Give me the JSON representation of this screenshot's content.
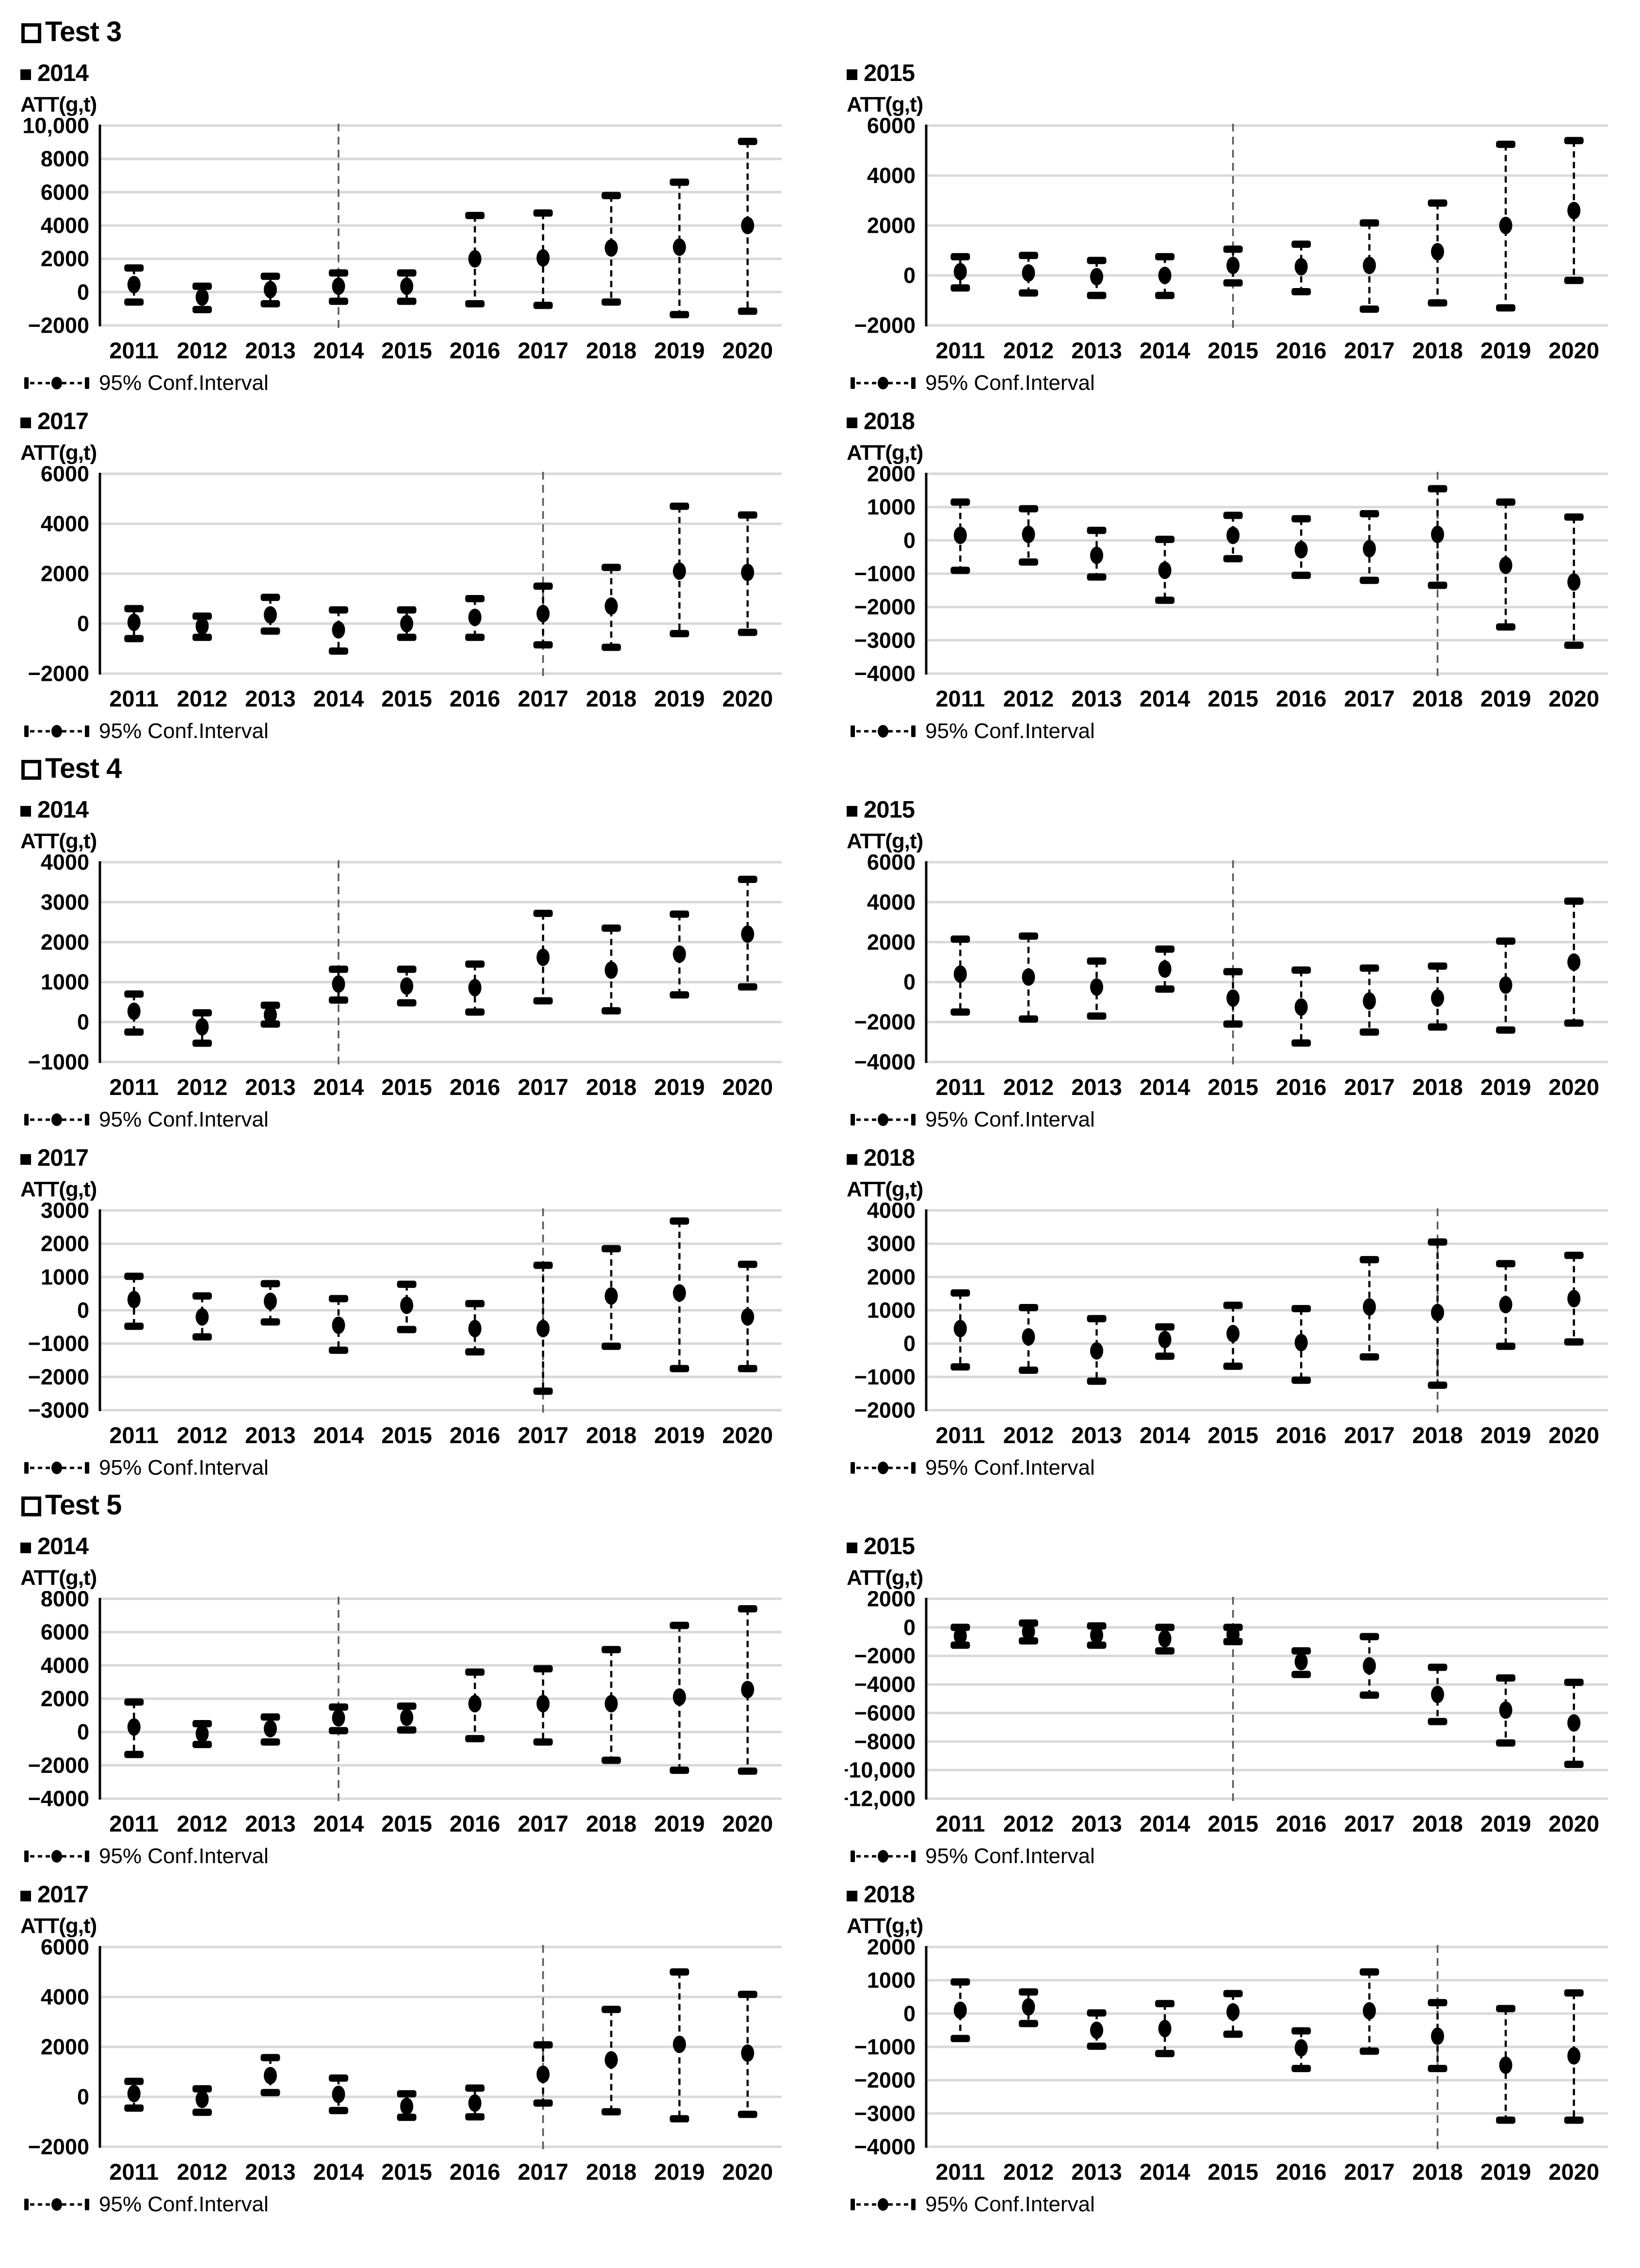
{
  "ui": {
    "legend_label": "95% Conf.Interval",
    "y_axis_title": "ATT(g,t)"
  },
  "colors": {
    "marker": "#000000",
    "gridline": "#d8d8d8",
    "vline": "#595959",
    "text": "#000000"
  },
  "sections": [
    {
      "title": "Test 3",
      "chart_indexes": [
        0,
        1,
        2,
        3
      ]
    },
    {
      "title": "Test 4",
      "chart_indexes": [
        4,
        5,
        6,
        7
      ]
    },
    {
      "title": "Test 5",
      "chart_indexes": [
        8,
        9,
        10,
        11
      ]
    }
  ],
  "chart_data": [
    {
      "type": "scatter",
      "error_bars": true,
      "section": "Test 3",
      "group": "2014",
      "ylabel": "ATT(g,t)",
      "xlabel": "",
      "legend_label": "95% Conf.Interval",
      "legend_position": "bottom-left",
      "grid": true,
      "vline_x": 2014,
      "x": [
        2011,
        2012,
        2013,
        2014,
        2015,
        2016,
        2017,
        2018,
        2019,
        2020
      ],
      "estimate": [
        450,
        -300,
        150,
        350,
        350,
        2000,
        2050,
        2650,
        2700,
        4000
      ],
      "ci_low": [
        -600,
        -1050,
        -700,
        -550,
        -550,
        -700,
        -800,
        -600,
        -1350,
        -1150
      ],
      "ci_high": [
        1450,
        350,
        950,
        1150,
        1150,
        4600,
        4750,
        5800,
        6600,
        9050
      ],
      "ylim": [
        -2000,
        10000
      ],
      "yticks": [
        10000,
        8000,
        6000,
        4000,
        2000,
        0,
        -2000
      ],
      "ytick_labels": [
        "10,000",
        "8000",
        "6000",
        "4000",
        "2000",
        "0",
        "−2000"
      ]
    },
    {
      "type": "scatter",
      "error_bars": true,
      "section": "Test 3",
      "group": "2015",
      "ylabel": "ATT(g,t)",
      "xlabel": "",
      "legend_label": "95% Conf.Interval",
      "legend_position": "bottom-left",
      "grid": true,
      "vline_x": 2015,
      "x": [
        2011,
        2012,
        2013,
        2014,
        2015,
        2016,
        2017,
        2018,
        2019,
        2020
      ],
      "estimate": [
        150,
        100,
        -50,
        0,
        400,
        350,
        400,
        950,
        2000,
        2600
      ],
      "ci_low": [
        -500,
        -700,
        -800,
        -800,
        -300,
        -650,
        -1350,
        -1100,
        -1300,
        -200
      ],
      "ci_high": [
        750,
        800,
        600,
        750,
        1050,
        1250,
        2100,
        2900,
        5250,
        5400
      ],
      "ylim": [
        -2000,
        6000
      ],
      "yticks": [
        6000,
        4000,
        2000,
        0,
        -2000
      ],
      "ytick_labels": [
        "6000",
        "4000",
        "2000",
        "0",
        "−2000"
      ]
    },
    {
      "type": "scatter",
      "error_bars": true,
      "section": "Test 3",
      "group": "2017",
      "ylabel": "ATT(g,t)",
      "xlabel": "",
      "legend_label": "95% Conf.Interval",
      "legend_position": "bottom-left",
      "grid": true,
      "vline_x": 2017,
      "x": [
        2011,
        2012,
        2013,
        2014,
        2015,
        2016,
        2017,
        2018,
        2019,
        2020
      ],
      "estimate": [
        50,
        -100,
        350,
        -250,
        0,
        250,
        400,
        700,
        2100,
        2050
      ],
      "ci_low": [
        -600,
        -550,
        -300,
        -1100,
        -550,
        -550,
        -850,
        -950,
        -400,
        -350
      ],
      "ci_high": [
        600,
        300,
        1050,
        550,
        550,
        1000,
        1500,
        2250,
        4700,
        4350
      ],
      "ylim": [
        -2000,
        6000
      ],
      "yticks": [
        6000,
        4000,
        2000,
        0,
        -2000
      ],
      "ytick_labels": [
        "6000",
        "4000",
        "2000",
        "0",
        "−2000"
      ]
    },
    {
      "type": "scatter",
      "error_bars": true,
      "section": "Test 3",
      "group": "2018",
      "ylabel": "ATT(g,t)",
      "xlabel": "",
      "legend_label": "95% Conf.Interval",
      "legend_position": "bottom-left",
      "grid": true,
      "vline_x": 2018,
      "x": [
        2011,
        2012,
        2013,
        2014,
        2015,
        2016,
        2017,
        2018,
        2019,
        2020
      ],
      "estimate": [
        150,
        180,
        -450,
        -900,
        150,
        -280,
        -250,
        180,
        -750,
        -1250
      ],
      "ci_low": [
        -900,
        -650,
        -1100,
        -1800,
        -550,
        -1050,
        -1200,
        -1350,
        -2600,
        -3150
      ],
      "ci_high": [
        1150,
        950,
        300,
        30,
        750,
        650,
        800,
        1550,
        1150,
        700
      ],
      "ylim": [
        -4000,
        2000
      ],
      "yticks": [
        2000,
        1000,
        0,
        -1000,
        -2000,
        -3000,
        -4000
      ],
      "ytick_labels": [
        "2000",
        "1000",
        "0",
        "−1000",
        "−2000",
        "−3000",
        "−4000"
      ]
    },
    {
      "type": "scatter",
      "error_bars": true,
      "section": "Test 4",
      "group": "2014",
      "ylabel": "ATT(g,t)",
      "xlabel": "",
      "legend_label": "95% Conf.Interval",
      "legend_position": "bottom-left",
      "grid": true,
      "vline_x": 2014,
      "x": [
        2011,
        2012,
        2013,
        2014,
        2015,
        2016,
        2017,
        2018,
        2019,
        2020
      ],
      "estimate": [
        270,
        -120,
        180,
        950,
        900,
        860,
        1620,
        1300,
        1700,
        2200
      ],
      "ci_low": [
        -250,
        -530,
        -50,
        550,
        480,
        250,
        530,
        280,
        680,
        880
      ],
      "ci_high": [
        700,
        230,
        420,
        1320,
        1320,
        1450,
        2720,
        2350,
        2700,
        3570
      ],
      "ylim": [
        -1000,
        4000
      ],
      "yticks": [
        4000,
        3000,
        2000,
        1000,
        0,
        -1000
      ],
      "ytick_labels": [
        "4000",
        "3000",
        "2000",
        "1000",
        "0",
        "−1000"
      ]
    },
    {
      "type": "scatter",
      "error_bars": true,
      "section": "Test 4",
      "group": "2015",
      "ylabel": "ATT(g,t)",
      "xlabel": "",
      "legend_label": "95% Conf.Interval",
      "legend_position": "bottom-left",
      "grid": true,
      "vline_x": 2015,
      "x": [
        2011,
        2012,
        2013,
        2014,
        2015,
        2016,
        2017,
        2018,
        2019,
        2020
      ],
      "estimate": [
        400,
        250,
        -250,
        650,
        -800,
        -1250,
        -950,
        -800,
        -150,
        1000
      ],
      "ci_low": [
        -1500,
        -1850,
        -1700,
        -350,
        -2100,
        -3050,
        -2500,
        -2250,
        -2400,
        -2050
      ],
      "ci_high": [
        2150,
        2300,
        1050,
        1650,
        520,
        600,
        700,
        800,
        2050,
        4050
      ],
      "ylim": [
        -4000,
        6000
      ],
      "yticks": [
        6000,
        4000,
        2000,
        0,
        -2000,
        -4000
      ],
      "ytick_labels": [
        "6000",
        "4000",
        "2000",
        "0",
        "−2000",
        "−4000"
      ]
    },
    {
      "type": "scatter",
      "error_bars": true,
      "section": "Test 4",
      "group": "2017",
      "ylabel": "ATT(g,t)",
      "xlabel": "",
      "legend_label": "95% Conf.Interval",
      "legend_position": "bottom-left",
      "grid": true,
      "vline_x": 2017,
      "x": [
        2011,
        2012,
        2013,
        2014,
        2015,
        2016,
        2017,
        2018,
        2019,
        2020
      ],
      "estimate": [
        320,
        -200,
        270,
        -450,
        150,
        -550,
        -550,
        430,
        520,
        -200
      ],
      "ci_low": [
        -480,
        -800,
        -350,
        -1200,
        -580,
        -1250,
        -2430,
        -1080,
        -1750,
        -1750
      ],
      "ci_high": [
        1020,
        430,
        800,
        350,
        780,
        200,
        1350,
        1850,
        2680,
        1380
      ],
      "ylim": [
        -3000,
        3000
      ],
      "yticks": [
        3000,
        2000,
        1000,
        0,
        -1000,
        -2000,
        -3000
      ],
      "ytick_labels": [
        "3000",
        "2000",
        "1000",
        "0",
        "−1000",
        "−2000",
        "−3000"
      ]
    },
    {
      "type": "scatter",
      "error_bars": true,
      "section": "Test 4",
      "group": "2018",
      "ylabel": "ATT(g,t)",
      "xlabel": "",
      "legend_label": "95% Conf.Interval",
      "legend_position": "bottom-left",
      "grid": true,
      "vline_x": 2018,
      "x": [
        2011,
        2012,
        2013,
        2014,
        2015,
        2016,
        2017,
        2018,
        2019,
        2020
      ],
      "estimate": [
        450,
        200,
        -220,
        120,
        300,
        30,
        1100,
        930,
        1170,
        1350
      ],
      "ci_low": [
        -700,
        -800,
        -1130,
        -380,
        -680,
        -1100,
        -400,
        -1250,
        -80,
        50
      ],
      "ci_high": [
        1520,
        1080,
        750,
        500,
        1150,
        1050,
        2520,
        3050,
        2400,
        2650
      ],
      "ylim": [
        -2000,
        4000
      ],
      "yticks": [
        4000,
        3000,
        2000,
        1000,
        0,
        -1000,
        -2000
      ],
      "ytick_labels": [
        "4000",
        "3000",
        "2000",
        "1000",
        "0",
        "−1000",
        "−2000"
      ]
    },
    {
      "type": "scatter",
      "error_bars": true,
      "section": "Test 5",
      "group": "2014",
      "ylabel": "ATT(g,t)",
      "xlabel": "",
      "legend_label": "95% Conf.Interval",
      "legend_position": "bottom-left",
      "grid": true,
      "vline_x": 2014,
      "x": [
        2011,
        2012,
        2013,
        2014,
        2015,
        2016,
        2017,
        2018,
        2019,
        2020
      ],
      "estimate": [
        300,
        -100,
        200,
        850,
        880,
        1700,
        1700,
        1700,
        2100,
        2550
      ],
      "ci_low": [
        -1350,
        -750,
        -600,
        80,
        120,
        -400,
        -600,
        -1700,
        -2300,
        -2350
      ],
      "ci_high": [
        1800,
        500,
        900,
        1500,
        1550,
        3600,
        3800,
        4950,
        6400,
        7400
      ],
      "ylim": [
        -4000,
        8000
      ],
      "yticks": [
        8000,
        6000,
        4000,
        2000,
        0,
        -2000,
        -4000
      ],
      "ytick_labels": [
        "8000",
        "6000",
        "4000",
        "2000",
        "0",
        "−2000",
        "−4000"
      ]
    },
    {
      "type": "scatter",
      "error_bars": true,
      "section": "Test 5",
      "group": "2015",
      "ylabel": "ATT(g,t)",
      "xlabel": "",
      "legend_label": "95% Conf.Interval",
      "legend_position": "bottom-left",
      "grid": true,
      "vline_x": 2015,
      "x": [
        2011,
        2012,
        2013,
        2014,
        2015,
        2016,
        2017,
        2018,
        2019,
        2020
      ],
      "estimate": [
        -600,
        -300,
        -550,
        -800,
        -500,
        -2400,
        -2700,
        -4700,
        -5800,
        -6700
      ],
      "ci_low": [
        -1250,
        -950,
        -1250,
        -1650,
        -1000,
        -3300,
        -4750,
        -6600,
        -8100,
        -9600
      ],
      "ci_high": [
        0,
        300,
        100,
        0,
        0,
        -1650,
        -650,
        -2800,
        -3550,
        -3850
      ],
      "ylim": [
        -12000,
        2000
      ],
      "yticks": [
        2000,
        0,
        -2000,
        -4000,
        -6000,
        -8000,
        -10000,
        -12000
      ],
      "ytick_labels": [
        "2000",
        "0",
        "−2000",
        "−4000",
        "−6000",
        "−8000",
        "−10,000",
        "−12,000"
      ]
    },
    {
      "type": "scatter",
      "error_bars": true,
      "section": "Test 5",
      "group": "2017",
      "ylabel": "ATT(g,t)",
      "xlabel": "",
      "legend_label": "95% Conf.Interval",
      "legend_position": "bottom-left",
      "grid": true,
      "vline_x": 2017,
      "x": [
        2011,
        2012,
        2013,
        2014,
        2015,
        2016,
        2017,
        2018,
        2019,
        2020
      ],
      "estimate": [
        130,
        -100,
        850,
        100,
        -380,
        -250,
        900,
        1480,
        2100,
        1750
      ],
      "ci_low": [
        -450,
        -620,
        170,
        -550,
        -820,
        -800,
        -250,
        -600,
        -880,
        -700
      ],
      "ci_high": [
        620,
        320,
        1570,
        750,
        120,
        350,
        2080,
        3500,
        5000,
        4100
      ],
      "ylim": [
        -2000,
        6000
      ],
      "yticks": [
        6000,
        4000,
        2000,
        0,
        -2000
      ],
      "ytick_labels": [
        "6000",
        "4000",
        "2000",
        "0",
        "−2000"
      ]
    },
    {
      "type": "scatter",
      "error_bars": true,
      "section": "Test 5",
      "group": "2018",
      "ylabel": "ATT(g,t)",
      "xlabel": "",
      "legend_label": "95% Conf.Interval",
      "legend_position": "bottom-left",
      "grid": true,
      "vline_x": 2018,
      "x": [
        2011,
        2012,
        2013,
        2014,
        2015,
        2016,
        2017,
        2018,
        2019,
        2020
      ],
      "estimate": [
        100,
        200,
        -500,
        -450,
        50,
        -1030,
        80,
        -680,
        -1550,
        -1270
      ],
      "ci_low": [
        -750,
        -300,
        -980,
        -1200,
        -620,
        -1650,
        -1130,
        -1650,
        -3200,
        -3200
      ],
      "ci_high": [
        950,
        650,
        20,
        300,
        600,
        -520,
        1250,
        330,
        150,
        620
      ],
      "ylim": [
        -4000,
        2000
      ],
      "yticks": [
        2000,
        1000,
        0,
        -1000,
        -2000,
        -3000,
        -4000
      ],
      "ytick_labels": [
        "2000",
        "1000",
        "0",
        "−1000",
        "−2000",
        "−3000",
        "−4000"
      ]
    }
  ]
}
